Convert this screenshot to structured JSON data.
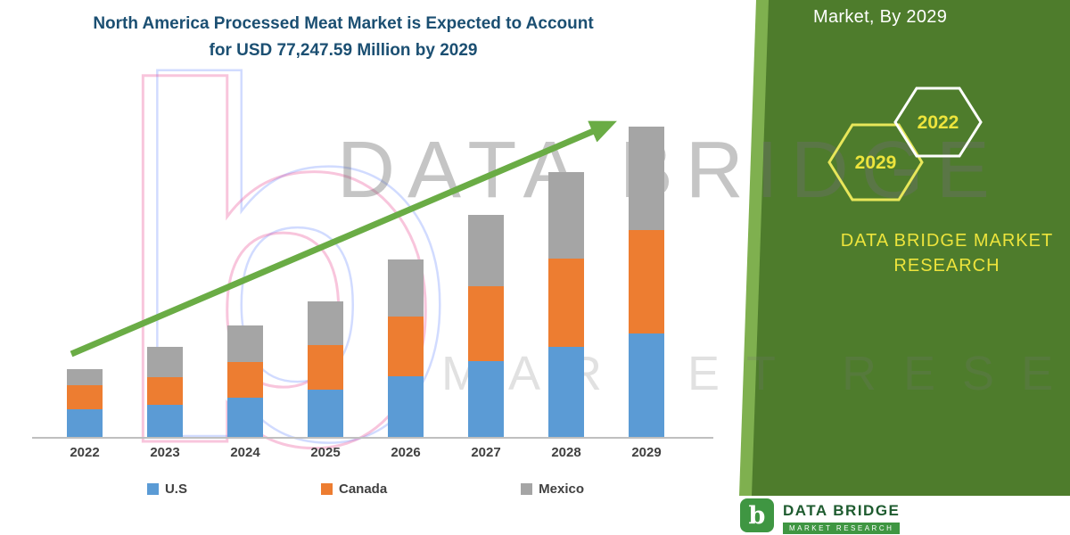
{
  "colors": {
    "panel-green": "#4E7C2C",
    "panel-green-light": "#7FB04F",
    "arrow-green": "#6AAC45",
    "title-blue": "#1B4F72",
    "hex-yellow": "#EDE43C",
    "axis-gray": "#BFBFBF",
    "label-gray": "#404040",
    "logo-green": "#3F9642",
    "logo-text-green": "#1E5B2F"
  },
  "title": {
    "line1": "North America Processed Meat Market is Expected to Account",
    "line2": "for USD 77,247.59 Million by 2029"
  },
  "watermark": {
    "glyph": "b",
    "line1": "DATA BRIDGE",
    "line2": "MARKET RESEARCH"
  },
  "panel": {
    "heading": "Market, By 2029",
    "hexagons": [
      {
        "label": "2029"
      },
      {
        "label": "2022"
      }
    ],
    "brand_line1": "DATA BRIDGE MARKET",
    "brand_line2": "RESEARCH"
  },
  "logo": {
    "glyph": "b",
    "name": "DATA BRIDGE",
    "subtitle": "MARKET RESEARCH"
  },
  "chart_data": {
    "type": "bar",
    "stacked": true,
    "title": "North America Processed Meat Market is Expected to Account for USD 77,247.59 Million by 2029",
    "unit": "USD Million",
    "categories": [
      "2022",
      "2023",
      "2024",
      "2025",
      "2026",
      "2027",
      "2028",
      "2029"
    ],
    "series": [
      {
        "name": "U.S",
        "color": "#5B9BD5",
        "values": [
          6800,
          7900,
          9700,
          11700,
          15100,
          19000,
          22400,
          25800
        ]
      },
      {
        "name": "Canada",
        "color": "#ED7D31",
        "values": [
          6100,
          6900,
          9000,
          11100,
          14900,
          18500,
          22100,
          25700
        ]
      },
      {
        "name": "Mexico",
        "color": "#A5A5A5",
        "values": [
          4100,
          7700,
          9100,
          10900,
          14300,
          17900,
          21500,
          25747.59
        ]
      }
    ],
    "totals": [
      17000,
      22500,
      27800,
      33700,
      44300,
      55400,
      66000,
      77247.59
    ],
    "ylim": [
      0,
      80000
    ],
    "grid": false,
    "legend_position": "bottom",
    "annotations": [
      "green upward trend arrow from 2022 bar to 2029 bar"
    ]
  }
}
